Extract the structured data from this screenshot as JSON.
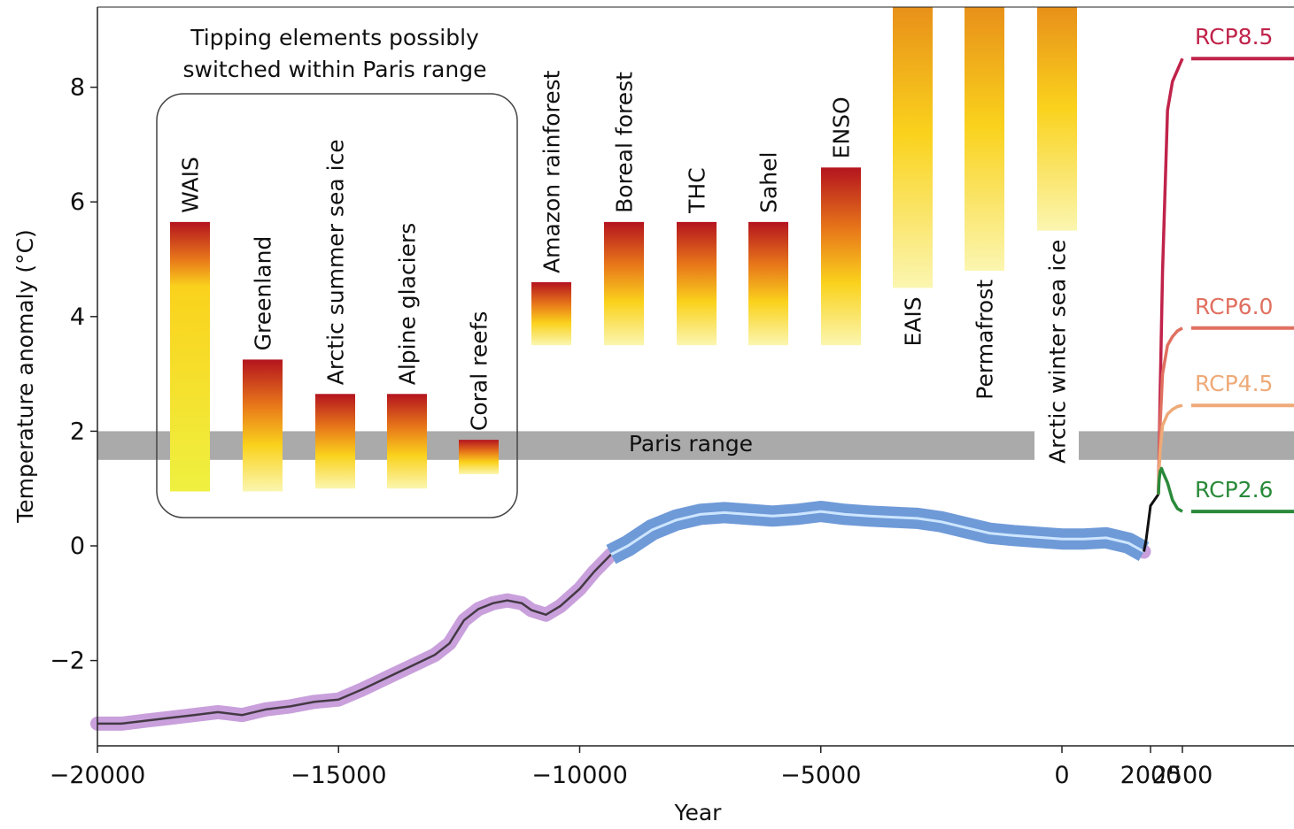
{
  "chart_data": {
    "type": "line",
    "xlabel": "Year",
    "ylabel": "Temperature anomaly (°C)",
    "xticks": [
      "−20000",
      "−15000",
      "−10000",
      "−5000",
      "0",
      "2000",
      "2500"
    ],
    "yticks": [
      "−2",
      "0",
      "2",
      "4",
      "6",
      "8"
    ],
    "ylim": [
      -3.5,
      9.4
    ],
    "box_title_line1": "Tipping elements possibly",
    "box_title_line2": "switched within Paris range",
    "paris_label": "Paris range",
    "paris_range": [
      1.5,
      2.0
    ],
    "historical": [
      [
        -20000,
        -3.1
      ],
      [
        -19500,
        -3.1
      ],
      [
        -19000,
        -3.05
      ],
      [
        -18500,
        -3.0
      ],
      [
        -18000,
        -2.95
      ],
      [
        -17500,
        -2.9
      ],
      [
        -17000,
        -2.95
      ],
      [
        -16500,
        -2.85
      ],
      [
        -16000,
        -2.8
      ],
      [
        -15500,
        -2.72
      ],
      [
        -15000,
        -2.68
      ],
      [
        -14500,
        -2.5
      ],
      [
        -14000,
        -2.3
      ],
      [
        -13500,
        -2.1
      ],
      [
        -13000,
        -1.9
      ],
      [
        -12700,
        -1.7
      ],
      [
        -12400,
        -1.3
      ],
      [
        -12100,
        -1.1
      ],
      [
        -11800,
        -1.0
      ],
      [
        -11500,
        -0.95
      ],
      [
        -11200,
        -1.0
      ],
      [
        -11000,
        -1.12
      ],
      [
        -10700,
        -1.2
      ],
      [
        -10400,
        -1.05
      ],
      [
        -10000,
        -0.75
      ],
      [
        -9700,
        -0.45
      ],
      [
        -9350,
        -0.15
      ],
      [
        -9000,
        0.0
      ],
      [
        -8500,
        0.28
      ],
      [
        -8000,
        0.45
      ],
      [
        -7500,
        0.55
      ],
      [
        -7000,
        0.58
      ],
      [
        -6500,
        0.55
      ],
      [
        -6000,
        0.52
      ],
      [
        -5500,
        0.55
      ],
      [
        -5000,
        0.6
      ],
      [
        -4500,
        0.55
      ],
      [
        -4000,
        0.52
      ],
      [
        -3500,
        0.5
      ],
      [
        -3000,
        0.48
      ],
      [
        -2500,
        0.42
      ],
      [
        -2000,
        0.32
      ],
      [
        -1500,
        0.22
      ],
      [
        -1000,
        0.18
      ],
      [
        -500,
        0.15
      ],
      [
        0,
        0.12
      ],
      [
        500,
        0.12
      ],
      [
        1000,
        0.14
      ],
      [
        1500,
        0.05
      ],
      [
        1850,
        -0.1
      ]
    ],
    "marcott_x_range": [
      -9350,
      1850
    ],
    "recent": [
      [
        1850,
        -0.1
      ],
      [
        1900,
        0.1
      ],
      [
        1950,
        0.4
      ],
      [
        2000,
        0.7
      ],
      [
        2016,
        0.9
      ]
    ],
    "scenarios": [
      {
        "name": "RCP8.5",
        "color": "#c0234a",
        "end": 8.5,
        "points": [
          [
            2016,
            0.9
          ],
          [
            2030,
            1.6
          ],
          [
            2050,
            2.6
          ],
          [
            2100,
            4.8
          ],
          [
            2200,
            7.6
          ],
          [
            2300,
            8.1
          ],
          [
            2400,
            8.3
          ],
          [
            2500,
            8.5
          ]
        ]
      },
      {
        "name": "RCP6.0",
        "color": "#e07060",
        "end": 3.8,
        "points": [
          [
            2016,
            0.9
          ],
          [
            2030,
            1.4
          ],
          [
            2050,
            2.1
          ],
          [
            2100,
            3.0
          ],
          [
            2200,
            3.5
          ],
          [
            2300,
            3.65
          ],
          [
            2400,
            3.75
          ],
          [
            2500,
            3.8
          ]
        ]
      },
      {
        "name": "RCP4.5",
        "color": "#eeaa78",
        "end": 2.45,
        "points": [
          [
            2016,
            0.9
          ],
          [
            2030,
            1.3
          ],
          [
            2050,
            1.65
          ],
          [
            2100,
            2.1
          ],
          [
            2200,
            2.3
          ],
          [
            2300,
            2.38
          ],
          [
            2400,
            2.43
          ],
          [
            2500,
            2.45
          ]
        ]
      },
      {
        "name": "RCP2.6",
        "color": "#2a8a3a",
        "end": 0.6,
        "points": [
          [
            2016,
            0.9
          ],
          [
            2030,
            1.15
          ],
          [
            2050,
            1.3
          ],
          [
            2080,
            1.35
          ],
          [
            2100,
            1.3
          ],
          [
            2200,
            1.1
          ],
          [
            2300,
            0.8
          ],
          [
            2400,
            0.65
          ],
          [
            2500,
            0.6
          ]
        ]
      }
    ],
    "tipping_elements": [
      {
        "name": "WAIS",
        "low": 0.95,
        "high": 5.65,
        "in_paris": true,
        "style": "long"
      },
      {
        "name": "Greenland",
        "low": 0.95,
        "high": 3.25,
        "in_paris": true
      },
      {
        "name": "Arctic summer sea ice",
        "low": 1.0,
        "high": 2.65,
        "in_paris": true
      },
      {
        "name": "Alpine glaciers",
        "low": 1.0,
        "high": 2.65,
        "in_paris": true
      },
      {
        "name": "Coral reefs",
        "low": 1.25,
        "high": 1.85,
        "in_paris": true
      },
      {
        "name": "Amazon rainforest",
        "low": 3.5,
        "high": 4.6,
        "in_paris": false
      },
      {
        "name": "Boreal forest",
        "low": 3.5,
        "high": 5.65,
        "in_paris": false
      },
      {
        "name": "THC",
        "low": 3.5,
        "high": 5.65,
        "in_paris": false
      },
      {
        "name": "Sahel",
        "low": 3.5,
        "high": 5.65,
        "in_paris": false
      },
      {
        "name": "ENSO",
        "low": 3.5,
        "high": 6.6,
        "in_paris": false
      },
      {
        "name": "EAIS",
        "low": 4.5,
        "high": 9.4,
        "in_paris": false,
        "style": "top"
      },
      {
        "name": "Permafrost",
        "low": 4.8,
        "high": 9.4,
        "in_paris": false,
        "style": "top"
      },
      {
        "name": "Arctic winter sea ice",
        "low": 5.5,
        "high": 9.4,
        "in_paris": false,
        "style": "top"
      }
    ]
  }
}
